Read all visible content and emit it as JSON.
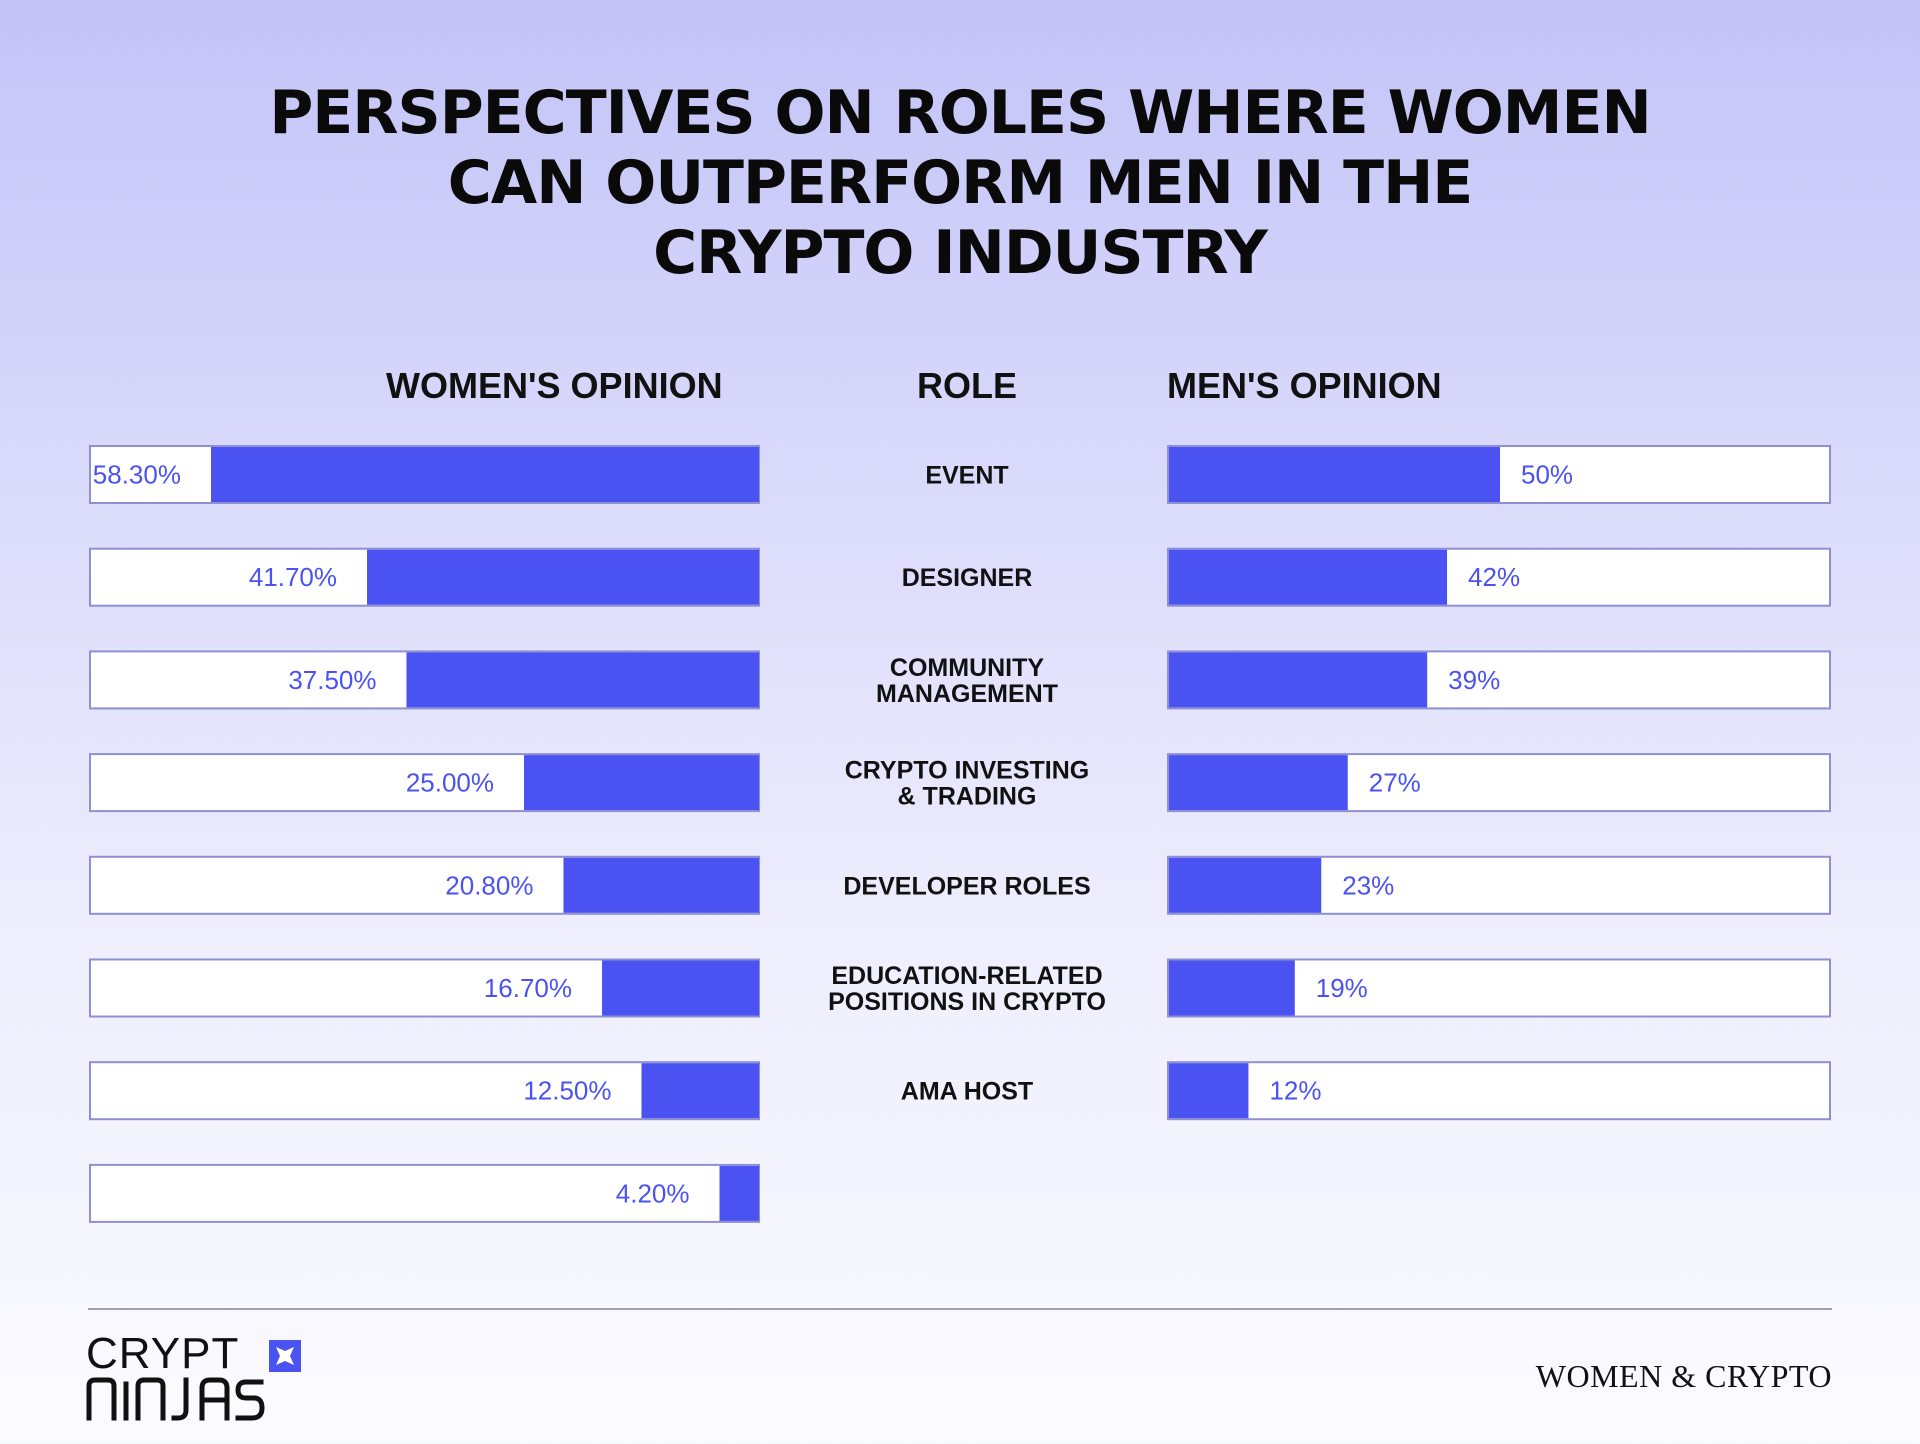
{
  "title_lines": [
    "PERSPECTIVES ON ROLES WHERE WOMEN",
    "CAN OUTPERFORM MEN IN THE",
    "CRYPTO INDUSTRY"
  ],
  "headers": {
    "women": "WOMEN'S OPINION",
    "role": "ROLE",
    "men": "MEN'S OPINION"
  },
  "chart_data": {
    "type": "bar",
    "title": "PERSPECTIVES ON ROLES WHERE WOMEN CAN OUTPERFORM MEN IN THE CRYPTO INDUSTRY",
    "xlim": [
      0,
      100
    ],
    "grid": false,
    "colors": {
      "bar": "#4a52f2",
      "frame": "#8f8fd4",
      "label": "#4a52f2"
    },
    "rows": [
      {
        "role_lines": [
          "EVENT"
        ],
        "women": 58.3,
        "women_label": "58.30%",
        "men": 50,
        "men_label": "50%"
      },
      {
        "role_lines": [
          "DESIGNER"
        ],
        "women": 41.7,
        "women_label": "41.70%",
        "men": 42,
        "men_label": "42%"
      },
      {
        "role_lines": [
          "COMMUNITY",
          "MANAGEMENT"
        ],
        "women": 37.5,
        "women_label": "37.50%",
        "men": 39,
        "men_label": "39%"
      },
      {
        "role_lines": [
          "CRYPTO INVESTING",
          "& TRADING"
        ],
        "women": 25.0,
        "women_label": "25.00%",
        "men": 27,
        "men_label": "27%"
      },
      {
        "role_lines": [
          "DEVELOPER ROLES"
        ],
        "women": 20.8,
        "women_label": "20.80%",
        "men": 23,
        "men_label": "23%"
      },
      {
        "role_lines": [
          "EDUCATION-RELATED",
          "POSITIONS IN CRYPTO"
        ],
        "women": 16.7,
        "women_label": "16.70%",
        "men": 19,
        "men_label": "19%"
      },
      {
        "role_lines": [
          "AMA HOST"
        ],
        "women": 12.5,
        "women_label": "12.50%",
        "men": 12,
        "men_label": "12%"
      },
      {
        "role_lines": [],
        "women": 4.2,
        "women_label": "4.20%",
        "men": null,
        "men_label": null
      }
    ]
  },
  "footer": {
    "logo_top": "CRYPT",
    "logo_bottom": "NINJAS",
    "brand": "WOMEN & CRYPTO"
  }
}
